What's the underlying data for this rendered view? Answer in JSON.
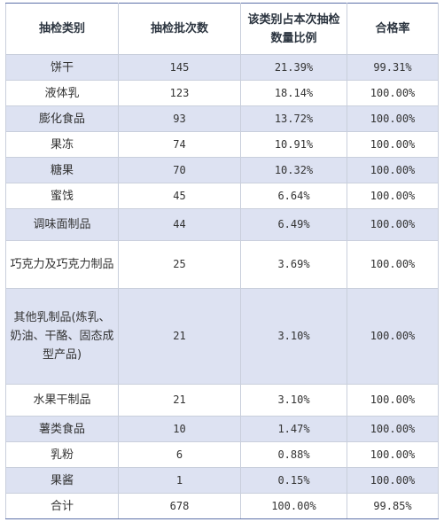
{
  "table": {
    "headers": [
      "抽检类别",
      "抽检批次数",
      "该类别占本次抽检数量比例",
      "合格率"
    ],
    "rows": [
      {
        "category": "饼干",
        "batches": "145",
        "ratio": "21.39%",
        "pass_rate": "99.31%"
      },
      {
        "category": "液体乳",
        "batches": "123",
        "ratio": "18.14%",
        "pass_rate": "100.00%"
      },
      {
        "category": "膨化食品",
        "batches": "93",
        "ratio": "13.72%",
        "pass_rate": "100.00%"
      },
      {
        "category": "果冻",
        "batches": "74",
        "ratio": "10.91%",
        "pass_rate": "100.00%"
      },
      {
        "category": "糖果",
        "batches": "70",
        "ratio": "10.32%",
        "pass_rate": "100.00%"
      },
      {
        "category": "蜜饯",
        "batches": "45",
        "ratio": "6.64%",
        "pass_rate": "100.00%"
      },
      {
        "category": "调味面制品",
        "batches": "44",
        "ratio": "6.49%",
        "pass_rate": "100.00%"
      },
      {
        "category": "巧克力及巧克力制品",
        "batches": "25",
        "ratio": "3.69%",
        "pass_rate": "100.00%"
      },
      {
        "category": "其他乳制品(炼乳、奶油、干酪、固态成型产品)",
        "batches": "21",
        "ratio": "3.10%",
        "pass_rate": "100.00%"
      },
      {
        "category": "水果干制品",
        "batches": "21",
        "ratio": "3.10%",
        "pass_rate": "100.00%"
      },
      {
        "category": "薯类食品",
        "batches": "10",
        "ratio": "1.47%",
        "pass_rate": "100.00%"
      },
      {
        "category": "乳粉",
        "batches": "6",
        "ratio": "0.88%",
        "pass_rate": "100.00%"
      },
      {
        "category": "果酱",
        "batches": "1",
        "ratio": "0.15%",
        "pass_rate": "100.00%"
      }
    ],
    "total": {
      "category": "合计",
      "batches": "678",
      "ratio": "100.00%",
      "pass_rate": "99.85%"
    }
  },
  "colors": {
    "row_shade": "#dde2f2",
    "border": "#c9cfdc",
    "accent_line": "#5c6fa8"
  }
}
